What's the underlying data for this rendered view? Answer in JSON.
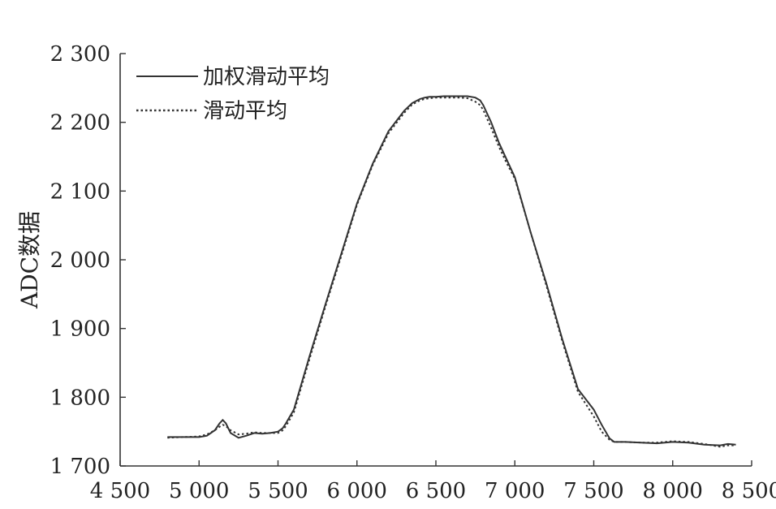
{
  "chart_data": {
    "type": "line",
    "title": "",
    "xlabel": "",
    "ylabel": "ADC数据",
    "xlim": [
      4500,
      8500
    ],
    "ylim": [
      1700,
      2300
    ],
    "grid": false,
    "legend_position": "top-left",
    "x_ticks": [
      4500,
      5000,
      5500,
      6000,
      6500,
      7000,
      7500,
      8000,
      8500
    ],
    "x_tick_labels": [
      "4 500",
      "5 000",
      "5 500",
      "6 000",
      "6 500",
      "7 000",
      "7 500",
      "8 000",
      "8 500"
    ],
    "y_ticks": [
      1700,
      1800,
      1900,
      2000,
      2100,
      2200,
      2300
    ],
    "y_tick_labels": [
      "1 700",
      "1 800",
      "1 900",
      "2 000",
      "2 100",
      "2 200",
      "2 300"
    ],
    "series": [
      {
        "name": "加权滑动平均",
        "style": "solid",
        "color": "#333333",
        "x": [
          4800,
          4900,
          5000,
          5050,
          5100,
          5130,
          5150,
          5170,
          5200,
          5250,
          5300,
          5350,
          5400,
          5450,
          5500,
          5530,
          5550,
          5600,
          5700,
          5800,
          5900,
          6000,
          6100,
          6200,
          6300,
          6350,
          6400,
          6430,
          6460,
          6500,
          6550,
          6600,
          6650,
          6700,
          6750,
          6780,
          6800,
          6850,
          6900,
          6950,
          7000,
          7100,
          7200,
          7300,
          7400,
          7500,
          7550,
          7600,
          7630,
          7660,
          7700,
          7800,
          7900,
          8000,
          8100,
          8200,
          8300,
          8350,
          8400
        ],
        "y": [
          1742,
          1742,
          1742,
          1744,
          1752,
          1762,
          1767,
          1762,
          1748,
          1741,
          1744,
          1748,
          1747,
          1748,
          1750,
          1755,
          1762,
          1782,
          1860,
          1935,
          2008,
          2082,
          2140,
          2187,
          2217,
          2228,
          2234,
          2236,
          2237,
          2237,
          2238,
          2238,
          2238,
          2238,
          2236,
          2232,
          2225,
          2200,
          2170,
          2145,
          2120,
          2040,
          1965,
          1885,
          1812,
          1782,
          1760,
          1740,
          1735,
          1735,
          1735,
          1734,
          1733,
          1735,
          1734,
          1731,
          1730,
          1732,
          1731
        ]
      },
      {
        "name": "滑动平均",
        "style": "dotted",
        "color": "#333333",
        "x": [
          4800,
          4900,
          5000,
          5050,
          5100,
          5130,
          5150,
          5170,
          5200,
          5250,
          5300,
          5350,
          5400,
          5450,
          5500,
          5530,
          5550,
          5600,
          5700,
          5800,
          5900,
          6000,
          6100,
          6200,
          6300,
          6350,
          6400,
          6430,
          6460,
          6500,
          6550,
          6600,
          6650,
          6700,
          6750,
          6780,
          6800,
          6850,
          6900,
          6950,
          7000,
          7100,
          7200,
          7300,
          7400,
          7500,
          7550,
          7600,
          7630,
          7660,
          7700,
          7800,
          7900,
          8000,
          8100,
          8200,
          8300,
          8350,
          8400
        ],
        "y": [
          1741,
          1742,
          1743,
          1746,
          1752,
          1757,
          1760,
          1758,
          1752,
          1746,
          1747,
          1749,
          1748,
          1748,
          1748,
          1752,
          1758,
          1778,
          1856,
          1932,
          2005,
          2080,
          2138,
          2184,
          2214,
          2226,
          2232,
          2234,
          2235,
          2236,
          2236,
          2236,
          2236,
          2235,
          2230,
          2225,
          2218,
          2192,
          2164,
          2140,
          2118,
          2040,
          1962,
          1882,
          1808,
          1772,
          1750,
          1738,
          1735,
          1735,
          1735,
          1734,
          1734,
          1736,
          1735,
          1732,
          1728,
          1730,
          1730
        ]
      }
    ]
  }
}
